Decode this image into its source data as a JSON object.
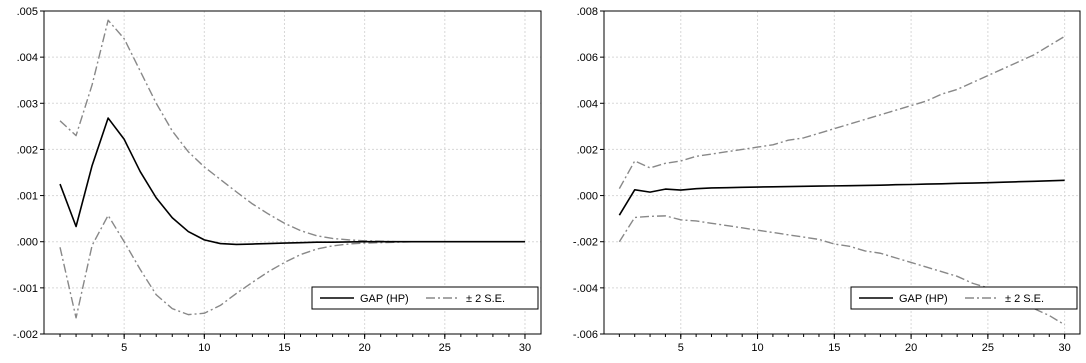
{
  "chart_data": [
    {
      "type": "line",
      "title": "",
      "xlabel": "",
      "ylabel": "",
      "xlim": [
        0,
        31
      ],
      "ylim": [
        -0.002,
        0.005
      ],
      "x_ticks": [
        5,
        10,
        15,
        20,
        25,
        30
      ],
      "x_tick_labels": [
        "5",
        "10",
        "15",
        "20",
        "25",
        "30"
      ],
      "y_ticks": [
        -0.002,
        -0.001,
        0.0,
        0.001,
        0.002,
        0.003,
        0.004,
        0.005
      ],
      "y_tick_labels": [
        "-.002",
        "-.001",
        ".000",
        ".001",
        ".002",
        ".003",
        ".004",
        ".005"
      ],
      "grid": true,
      "legend_position": "bottom-right",
      "x": [
        1,
        2,
        3,
        4,
        5,
        6,
        7,
        8,
        9,
        10,
        11,
        12,
        13,
        14,
        15,
        16,
        17,
        18,
        19,
        20,
        21,
        22,
        23,
        24,
        25,
        26,
        27,
        28,
        29,
        30
      ],
      "series": [
        {
          "name": "GAP (HP)",
          "style": "solid",
          "color": "#000000",
          "values": [
            0.00125,
            0.00033,
            0.00165,
            0.00268,
            0.00222,
            0.00152,
            0.00095,
            0.00052,
            0.00022,
            4e-05,
            -4e-05,
            -6e-05,
            -5e-05,
            -4e-05,
            -3e-05,
            -2e-05,
            -1e-05,
            -1e-05,
            -5e-06,
            0.0,
            0.0,
            0.0,
            0.0,
            0.0,
            0.0,
            0.0,
            0.0,
            0.0,
            0.0,
            0.0
          ]
        },
        {
          "name": "± 2 S.E.",
          "style": "dash-dot",
          "color": "#888888",
          "band": "upper",
          "values": [
            0.00262,
            0.0023,
            0.0034,
            0.0048,
            0.0044,
            0.0037,
            0.003,
            0.0024,
            0.00195,
            0.00162,
            0.00135,
            0.00108,
            0.00082,
            0.0006,
            0.0004,
            0.00024,
            0.00013,
            7e-05,
            4e-05,
            2e-05,
            1e-05,
            0.0,
            0.0,
            0.0,
            0.0,
            0.0,
            0.0,
            0.0,
            0.0,
            0.0
          ]
        },
        {
          "name": "± 2 S.E.",
          "style": "dash-dot",
          "color": "#888888",
          "band": "lower",
          "values": [
            -0.00012,
            -0.00165,
            -8e-05,
            0.00057,
            0.0,
            -0.0006,
            -0.00115,
            -0.00145,
            -0.00158,
            -0.00155,
            -0.00138,
            -0.00112,
            -0.00088,
            -0.00065,
            -0.00045,
            -0.00028,
            -0.00016,
            -9e-05,
            -5e-05,
            -3e-05,
            -2e-05,
            -1e-05,
            0.0,
            0.0,
            0.0,
            0.0,
            0.0,
            0.0,
            0.0,
            0.0
          ]
        }
      ]
    },
    {
      "type": "line",
      "title": "",
      "xlabel": "",
      "ylabel": "",
      "xlim": [
        0,
        31
      ],
      "ylim": [
        -0.006,
        0.008
      ],
      "x_ticks": [
        5,
        10,
        15,
        20,
        25,
        30
      ],
      "x_tick_labels": [
        "5",
        "10",
        "15",
        "20",
        "25",
        "30"
      ],
      "y_ticks": [
        -0.006,
        -0.004,
        -0.002,
        0.0,
        0.002,
        0.004,
        0.006,
        0.008
      ],
      "y_tick_labels": [
        "-.006",
        "-.004",
        "-.002",
        ".000",
        ".002",
        ".004",
        ".006",
        ".008"
      ],
      "grid": true,
      "legend_position": "bottom-right",
      "x": [
        1,
        2,
        3,
        4,
        5,
        6,
        7,
        8,
        9,
        10,
        11,
        12,
        13,
        14,
        15,
        16,
        17,
        18,
        19,
        20,
        21,
        22,
        23,
        24,
        25,
        26,
        27,
        28,
        29,
        30
      ],
      "series": [
        {
          "name": "GAP (HP)",
          "style": "solid",
          "color": "#000000",
          "values": [
            -0.00085,
            0.00025,
            0.00015,
            0.00028,
            0.00024,
            0.0003,
            0.00033,
            0.00034,
            0.00036,
            0.00037,
            0.00038,
            0.00039,
            0.0004,
            0.00041,
            0.00042,
            0.00043,
            0.00044,
            0.00045,
            0.00047,
            0.00048,
            0.0005,
            0.00051,
            0.00053,
            0.00054,
            0.00056,
            0.00058,
            0.0006,
            0.00062,
            0.00064,
            0.00066
          ]
        },
        {
          "name": "± 2 S.E.",
          "style": "dash-dot",
          "color": "#888888",
          "band": "upper",
          "values": [
            0.0003,
            0.0015,
            0.0012,
            0.0014,
            0.0015,
            0.0017,
            0.0018,
            0.0019,
            0.002,
            0.0021,
            0.0022,
            0.0024,
            0.0025,
            0.0027,
            0.0029,
            0.0031,
            0.0033,
            0.0035,
            0.0037,
            0.0039,
            0.0041,
            0.0044,
            0.0046,
            0.0049,
            0.0052,
            0.0055,
            0.0058,
            0.0061,
            0.0065,
            0.0069
          ]
        },
        {
          "name": "± 2 S.E.",
          "style": "dash-dot",
          "color": "#888888",
          "band": "lower",
          "values": [
            -0.002,
            -0.00095,
            -0.0009,
            -0.00088,
            -0.00105,
            -0.0011,
            -0.0012,
            -0.0013,
            -0.0014,
            -0.0015,
            -0.0016,
            -0.0017,
            -0.0018,
            -0.0019,
            -0.0021,
            -0.0022,
            -0.0024,
            -0.0025,
            -0.0027,
            -0.0029,
            -0.0031,
            -0.0033,
            -0.0035,
            -0.0038,
            -0.004,
            -0.0043,
            -0.0046,
            -0.0049,
            -0.0052,
            -0.0056
          ]
        }
      ]
    }
  ]
}
